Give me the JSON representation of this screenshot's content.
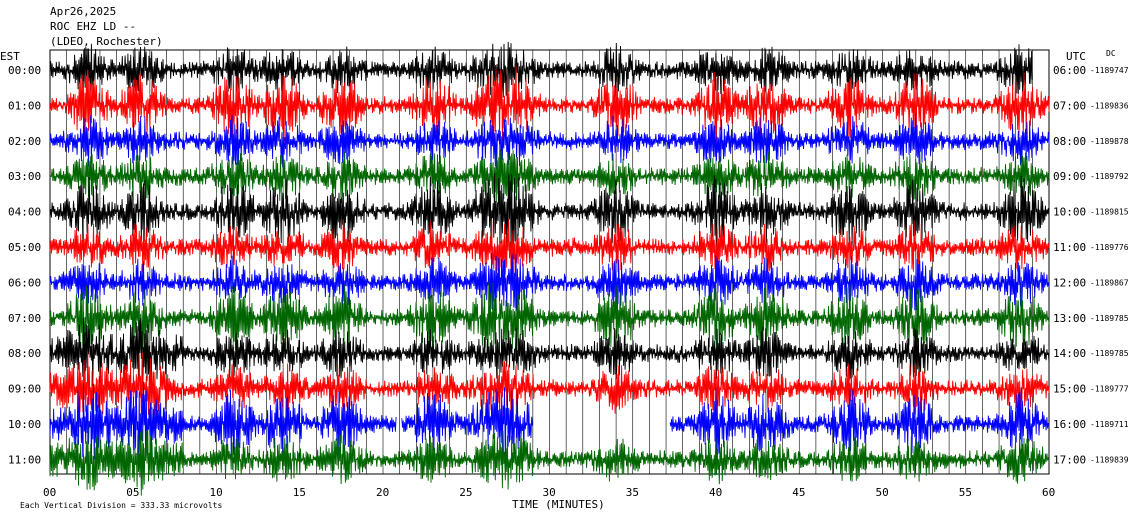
{
  "header": {
    "date": "Apr26,2025",
    "station": "ROC EHZ LD --",
    "network": "(LDEO, Rochester)"
  },
  "left_axis_title": "EST",
  "right_axis_title": "UTC",
  "dc_label": "DC",
  "footer": {
    "scale_note": "Each Vertical Division = 333.33 microvolts"
  },
  "chart_data": {
    "type": "line",
    "subtype": "helicorder",
    "xlabel": "TIME (MINUTES)",
    "x_ticks": [
      "00",
      "05",
      "10",
      "15",
      "20",
      "25",
      "30",
      "35",
      "40",
      "45",
      "50",
      "55",
      "60"
    ],
    "xlim": [
      0,
      60
    ],
    "trace_colors": [
      "#000000",
      "#ff0000",
      "#0000ff",
      "#006600"
    ],
    "lines": [
      {
        "est": "00:00",
        "utc": "06:00",
        "dc": "-1189747"
      },
      {
        "est": "01:00",
        "utc": "07:00",
        "dc": "-1189836"
      },
      {
        "est": "02:00",
        "utc": "08:00",
        "dc": "-1189878"
      },
      {
        "est": "03:00",
        "utc": "09:00",
        "dc": "-1189792"
      },
      {
        "est": "04:00",
        "utc": "10:00",
        "dc": "-1189815"
      },
      {
        "est": "05:00",
        "utc": "11:00",
        "dc": "-1189776"
      },
      {
        "est": "06:00",
        "utc": "12:00",
        "dc": "-1189867"
      },
      {
        "est": "07:00",
        "utc": "13:00",
        "dc": "-1189785"
      },
      {
        "est": "08:00",
        "utc": "14:00",
        "dc": "-1189785"
      },
      {
        "est": "09:00",
        "utc": "15:00",
        "dc": "-1189777"
      },
      {
        "est": "10:00",
        "utc": "16:00",
        "dc": "-1189711"
      },
      {
        "est": "11:00",
        "utc": "17:00",
        "dc": "-1189839"
      }
    ],
    "gap_minutes": [
      [
        20.8,
        21.1
      ],
      [
        29.0,
        37.2
      ]
    ],
    "last_trace_extent_minutes": [
      0,
      59
    ]
  }
}
